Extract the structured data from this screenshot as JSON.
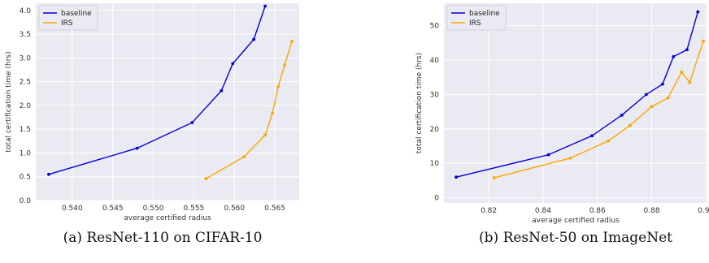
{
  "chart_data": [
    {
      "type": "line",
      "caption": "(a) ResNet-110 on CIFAR-10",
      "xlabel": "average certified radius",
      "ylabel": "total certification time (hrs)",
      "xlim": [
        0.5355,
        0.568
      ],
      "ylim": [
        0.0,
        4.15
      ],
      "xticks": [
        "0.540",
        "0.545",
        "0.550",
        "0.555",
        "0.560",
        "0.565"
      ],
      "xtick_values": [
        0.54,
        0.545,
        0.55,
        0.555,
        0.56,
        0.565
      ],
      "yticks": [
        "0.0",
        "0.5",
        "1.0",
        "1.5",
        "2.0",
        "2.5",
        "3.0",
        "3.5",
        "4.0"
      ],
      "ytick_values": [
        0.0,
        0.5,
        1.0,
        1.5,
        2.0,
        2.5,
        3.0,
        3.5,
        4.0
      ],
      "grid": true,
      "legend": "top-left",
      "series": [
        {
          "name": "baseline",
          "color": "#0000dd",
          "points": [
            [
              0.5371,
              0.55
            ],
            [
              0.548,
              1.1
            ],
            [
              0.5548,
              1.64
            ],
            [
              0.5584,
              2.31
            ],
            [
              0.5598,
              2.88
            ],
            [
              0.5624,
              3.39
            ],
            [
              0.5638,
              4.09
            ]
          ]
        },
        {
          "name": "IRS",
          "color": "#ffa500",
          "points": [
            [
              0.5565,
              0.46
            ],
            [
              0.5612,
              0.92
            ],
            [
              0.5638,
              1.38
            ],
            [
              0.5647,
              1.84
            ],
            [
              0.5654,
              2.39
            ],
            [
              0.5662,
              2.85
            ],
            [
              0.5671,
              3.35
            ]
          ]
        }
      ]
    },
    {
      "type": "line",
      "caption": "(b) ResNet-50 on ImageNet",
      "xlabel": "average certified radius",
      "ylabel": "total certification time (hrs)",
      "xlim": [
        0.8035,
        0.9005
      ],
      "ylim": [
        -1.5,
        56.5
      ],
      "xticks": [
        "0.82",
        "0.84",
        "0.86",
        "0.88",
        "0.90"
      ],
      "xtick_values": [
        0.82,
        0.84,
        0.86,
        0.88,
        0.9
      ],
      "yticks": [
        "0",
        "10",
        "20",
        "30",
        "40",
        "50"
      ],
      "ytick_values": [
        0,
        10,
        20,
        30,
        40,
        50
      ],
      "grid": true,
      "legend": "top-left",
      "series": [
        {
          "name": "baseline",
          "color": "#0000dd",
          "points": [
            [
              0.808,
              6.0
            ],
            [
              0.842,
              12.5
            ],
            [
              0.858,
              18.0
            ],
            [
              0.869,
              24.0
            ],
            [
              0.878,
              30.0
            ],
            [
              0.884,
              33.0
            ],
            [
              0.888,
              41.0
            ],
            [
              0.893,
              43.0
            ],
            [
              0.897,
              54.0
            ]
          ]
        },
        {
          "name": "IRS",
          "color": "#ffa500",
          "points": [
            [
              0.822,
              5.8
            ],
            [
              0.85,
              11.5
            ],
            [
              0.864,
              16.5
            ],
            [
              0.872,
              21.0
            ],
            [
              0.88,
              26.5
            ],
            [
              0.886,
              29.0
            ],
            [
              0.891,
              36.5
            ],
            [
              0.894,
              33.5
            ],
            [
              0.899,
              45.5
            ]
          ]
        }
      ]
    }
  ]
}
